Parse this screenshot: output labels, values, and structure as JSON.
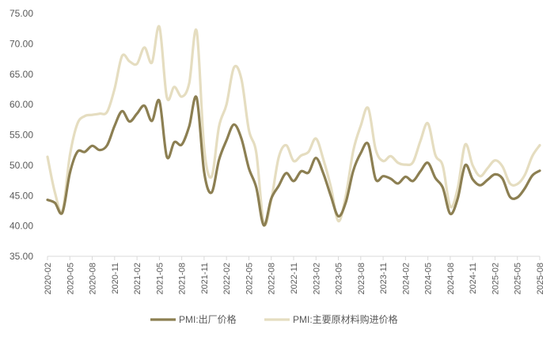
{
  "chart_data": {
    "type": "line",
    "title": "",
    "xlabel": "",
    "ylabel": "",
    "ylim": [
      35,
      75
    ],
    "yticks": [
      "35.00",
      "40.00",
      "45.00",
      "50.00",
      "55.00",
      "60.00",
      "65.00",
      "70.00",
      "75.00"
    ],
    "x": [
      "2020-02",
      "2020-03",
      "2020-04",
      "2020-05",
      "2020-06",
      "2020-07",
      "2020-08",
      "2020-09",
      "2020-10",
      "2020-11",
      "2020-12",
      "2021-01",
      "2021-02",
      "2021-03",
      "2021-04",
      "2021-05",
      "2021-06",
      "2021-07",
      "2021-08",
      "2021-09",
      "2021-10",
      "2021-11",
      "2021-12",
      "2022-01",
      "2022-02",
      "2022-03",
      "2022-04",
      "2022-05",
      "2022-06",
      "2022-07",
      "2022-08",
      "2022-09",
      "2022-10",
      "2022-11",
      "2022-12",
      "2023-01",
      "2023-02",
      "2023-03",
      "2023-04",
      "2023-05",
      "2023-06",
      "2023-07",
      "2023-08",
      "2023-09",
      "2023-10",
      "2023-11",
      "2023-12",
      "2024-01",
      "2024-02",
      "2024-03",
      "2024-04",
      "2024-05",
      "2024-06",
      "2024-07",
      "2024-08",
      "2024-09",
      "2024-10",
      "2024-11",
      "2024-12",
      "2025-01",
      "2025-02",
      "2025-03",
      "2025-04",
      "2025-05",
      "2025-06",
      "2025-07",
      "2025-08"
    ],
    "x_tick_labels": [
      "2020-02",
      "2020-05",
      "2020-08",
      "2020-11",
      "2021-02",
      "2021-05",
      "2021-08",
      "2021-11",
      "2022-02",
      "2022-05",
      "2022-08",
      "2022-11",
      "2023-02",
      "2023-05",
      "2023-08",
      "2023-11",
      "2024-02",
      "2024-05",
      "2024-08",
      "2024-11",
      "2025-02",
      "2025-05",
      "2025-08"
    ],
    "series": [
      {
        "name": "PMI:出厂价格",
        "color": "#8c7f52",
        "values": [
          44.3,
          43.8,
          42.2,
          48.7,
          52.2,
          52.2,
          53.2,
          52.5,
          53.3,
          56.5,
          58.9,
          57.2,
          58.5,
          59.8,
          57.3,
          60.6,
          51.4,
          53.8,
          53.4,
          56.4,
          61.1,
          48.9,
          45.5,
          50.9,
          54.1,
          56.7,
          54.4,
          49.5,
          46.3,
          40.1,
          44.5,
          46.6,
          48.7,
          47.4,
          49.0,
          48.8,
          51.2,
          48.6,
          44.9,
          41.6,
          43.9,
          49.1,
          52.0,
          53.5,
          47.7,
          48.2,
          47.8,
          47.0,
          48.1,
          47.4,
          49.0,
          50.4,
          47.9,
          46.3,
          42.0,
          44.5,
          50.0,
          47.7,
          46.7,
          47.6,
          48.5,
          47.8,
          44.8,
          44.7,
          46.2,
          48.3,
          49.1
        ]
      },
      {
        "name": "PMI:主要原材料购进价格",
        "color": "#e5ddc0",
        "values": [
          51.4,
          45.5,
          42.5,
          51.6,
          56.8,
          58.1,
          58.3,
          58.5,
          58.8,
          62.6,
          68.0,
          67.1,
          66.7,
          69.4,
          66.9,
          72.8,
          61.2,
          62.9,
          61.3,
          63.5,
          72.1,
          52.9,
          48.1,
          56.4,
          60.0,
          66.1,
          64.2,
          55.8,
          52.0,
          40.4,
          44.3,
          51.3,
          53.3,
          50.7,
          51.6,
          52.2,
          54.4,
          50.9,
          46.4,
          40.8,
          45.0,
          52.4,
          56.5,
          59.4,
          52.6,
          50.7,
          51.5,
          50.4,
          50.1,
          50.5,
          54.0,
          56.9,
          51.7,
          49.9,
          43.2,
          46.2,
          53.4,
          50.0,
          48.2,
          49.5,
          50.8,
          49.8,
          47.0,
          46.9,
          48.4,
          51.5,
          53.3
        ]
      }
    ],
    "legend_position": "bottom",
    "grid": false
  }
}
